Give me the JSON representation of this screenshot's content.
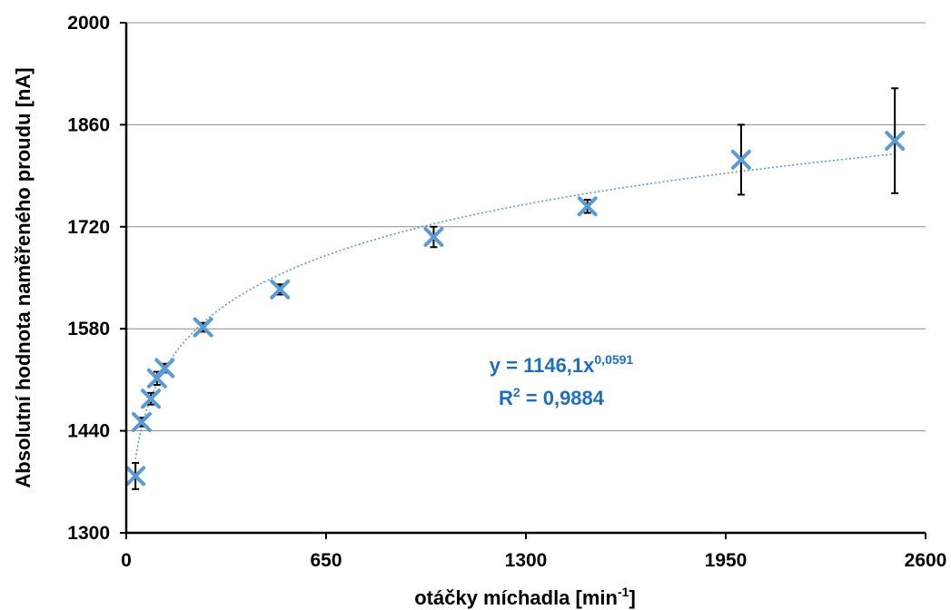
{
  "chart_data": {
    "type": "scatter",
    "xlabel": "otáčky míchadla [min",
    "xlabel_sup": "-1",
    "xlabel_end": "]",
    "ylabel": "Absolutní hodnota naměřeného proudu [nA]",
    "xlim": [
      0,
      2600
    ],
    "ylim": [
      1300,
      2000
    ],
    "xticks": [
      "0",
      "650",
      "1300",
      "1950",
      "2600"
    ],
    "yticks": [
      "1300",
      "1440",
      "1580",
      "1720",
      "1860",
      "2000"
    ],
    "grid": "horizontal",
    "marker_color": "#5b9bd5",
    "series": [
      {
        "marker": "x",
        "x": [
          30,
          50,
          80,
          100,
          125,
          250,
          500,
          1000,
          1500,
          2000,
          2500
        ],
        "y": [
          1378,
          1452,
          1484,
          1512,
          1526,
          1582,
          1634,
          1706,
          1748,
          1812,
          1838
        ],
        "err": [
          18,
          6,
          8,
          9,
          6,
          6,
          7,
          14,
          9,
          48,
          72
        ]
      }
    ],
    "trendline": {
      "type": "power",
      "a": 1146.1,
      "b": 0.0591,
      "style": "dotted",
      "color": "#5b9bd5",
      "equation_prefix": "y = 1146,1x",
      "equation_exponent": "0,0591",
      "r2_prefix": "R",
      "r2_exponent": "2",
      "r2_value": " = 0,9884",
      "label_color": "#1f6fbf"
    }
  }
}
